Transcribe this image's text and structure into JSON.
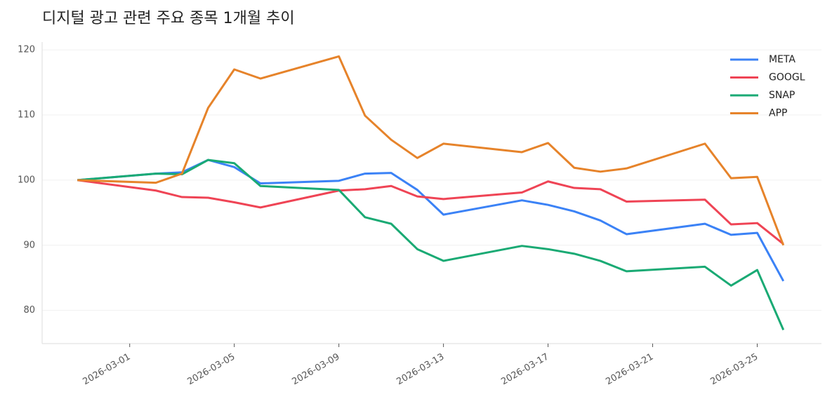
{
  "chart_data": {
    "type": "line",
    "title": "디지털 광고 관련 주요 종목 1개월 추이",
    "x": [
      "2026-02-27",
      "2026-03-02",
      "2026-03-03",
      "2026-03-04",
      "2026-03-05",
      "2026-03-06",
      "2026-03-09",
      "2026-03-10",
      "2026-03-11",
      "2026-03-12",
      "2026-03-13",
      "2026-03-16",
      "2026-03-17",
      "2026-03-18",
      "2026-03-19",
      "2026-03-20",
      "2026-03-23",
      "2026-03-24",
      "2026-03-25",
      "2026-03-26"
    ],
    "series": [
      {
        "name": "META",
        "color": "#3b82f6",
        "values": [
          100,
          101.0,
          101.2,
          103.1,
          102.0,
          99.5,
          99.9,
          101.0,
          101.1,
          98.5,
          94.7,
          96.9,
          96.2,
          95.2,
          93.8,
          91.7,
          93.3,
          91.6,
          91.9,
          84.5
        ]
      },
      {
        "name": "GOOGL",
        "color": "#ef4455",
        "values": [
          100,
          98.4,
          97.4,
          97.3,
          96.6,
          95.8,
          98.4,
          98.6,
          99.1,
          97.5,
          97.1,
          98.1,
          99.8,
          98.8,
          98.6,
          96.7,
          97.0,
          93.2,
          93.4,
          90.2
        ]
      },
      {
        "name": "SNAP",
        "color": "#1aaa74",
        "values": [
          100,
          101.0,
          100.9,
          103.1,
          102.6,
          99.1,
          98.5,
          94.3,
          93.3,
          89.4,
          87.6,
          89.9,
          89.4,
          88.7,
          87.6,
          86.0,
          86.7,
          83.8,
          86.2,
          77.0
        ]
      },
      {
        "name": "APP",
        "color": "#e6832a",
        "values": [
          100,
          99.6,
          101.0,
          111.1,
          117.0,
          115.6,
          119.0,
          109.9,
          106.2,
          103.4,
          105.6,
          104.3,
          105.7,
          101.9,
          101.3,
          101.8,
          105.6,
          100.3,
          100.5,
          90.0
        ]
      }
    ],
    "xlim": [
      "2026-02-26",
      "2026-03-27"
    ],
    "xticks": [
      "2026-03-01",
      "2026-03-05",
      "2026-03-09",
      "2026-03-13",
      "2026-03-17",
      "2026-03-21",
      "2026-03-25"
    ],
    "ylim": [
      74.9,
      121.2
    ],
    "yticks": [
      80,
      90,
      100,
      110,
      120
    ],
    "grid": true,
    "legend": "upper right"
  }
}
